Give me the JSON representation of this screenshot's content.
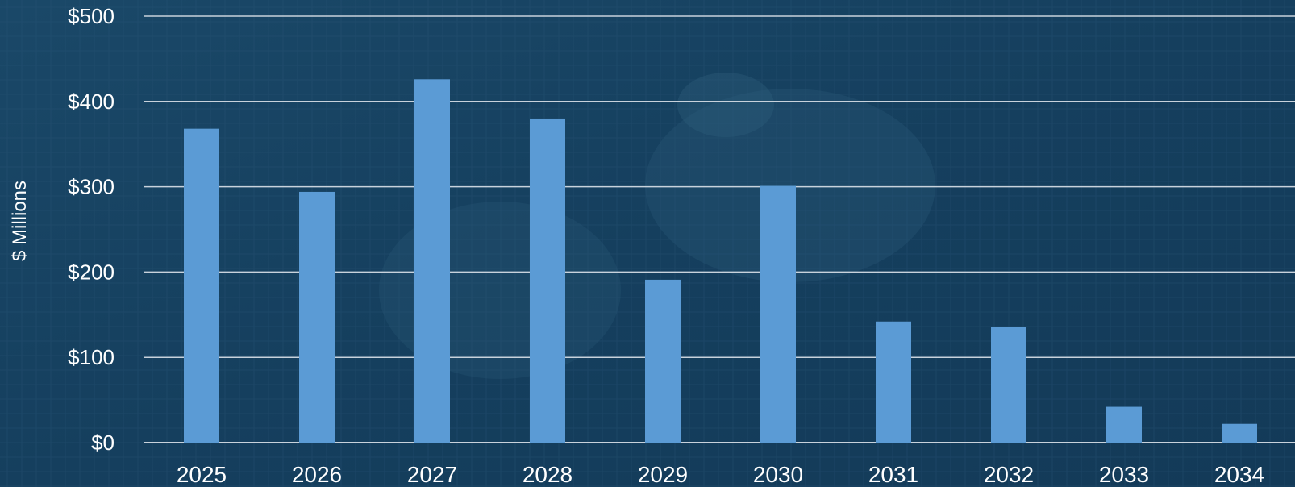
{
  "chart_data": {
    "type": "bar",
    "title": "",
    "xlabel": "",
    "ylabel": "$ Millions",
    "categories": [
      "2025",
      "2026",
      "2027",
      "2028",
      "2029",
      "2030",
      "2031",
      "2032",
      "2033",
      "2034"
    ],
    "values": [
      368,
      294,
      426,
      380,
      191,
      301,
      142,
      136,
      42,
      22
    ],
    "ylim": [
      0,
      500
    ],
    "y_ticks": [
      0,
      100,
      200,
      300,
      400,
      500
    ],
    "y_tick_labels": [
      "$0",
      "$100",
      "$200",
      "$300",
      "$400",
      "$500"
    ],
    "grid": true,
    "legend": "none",
    "colors": {
      "bar": "#5b9bd5",
      "background": "#163f5f",
      "gridline": "#c8d2dc",
      "text": "#ffffff"
    }
  }
}
